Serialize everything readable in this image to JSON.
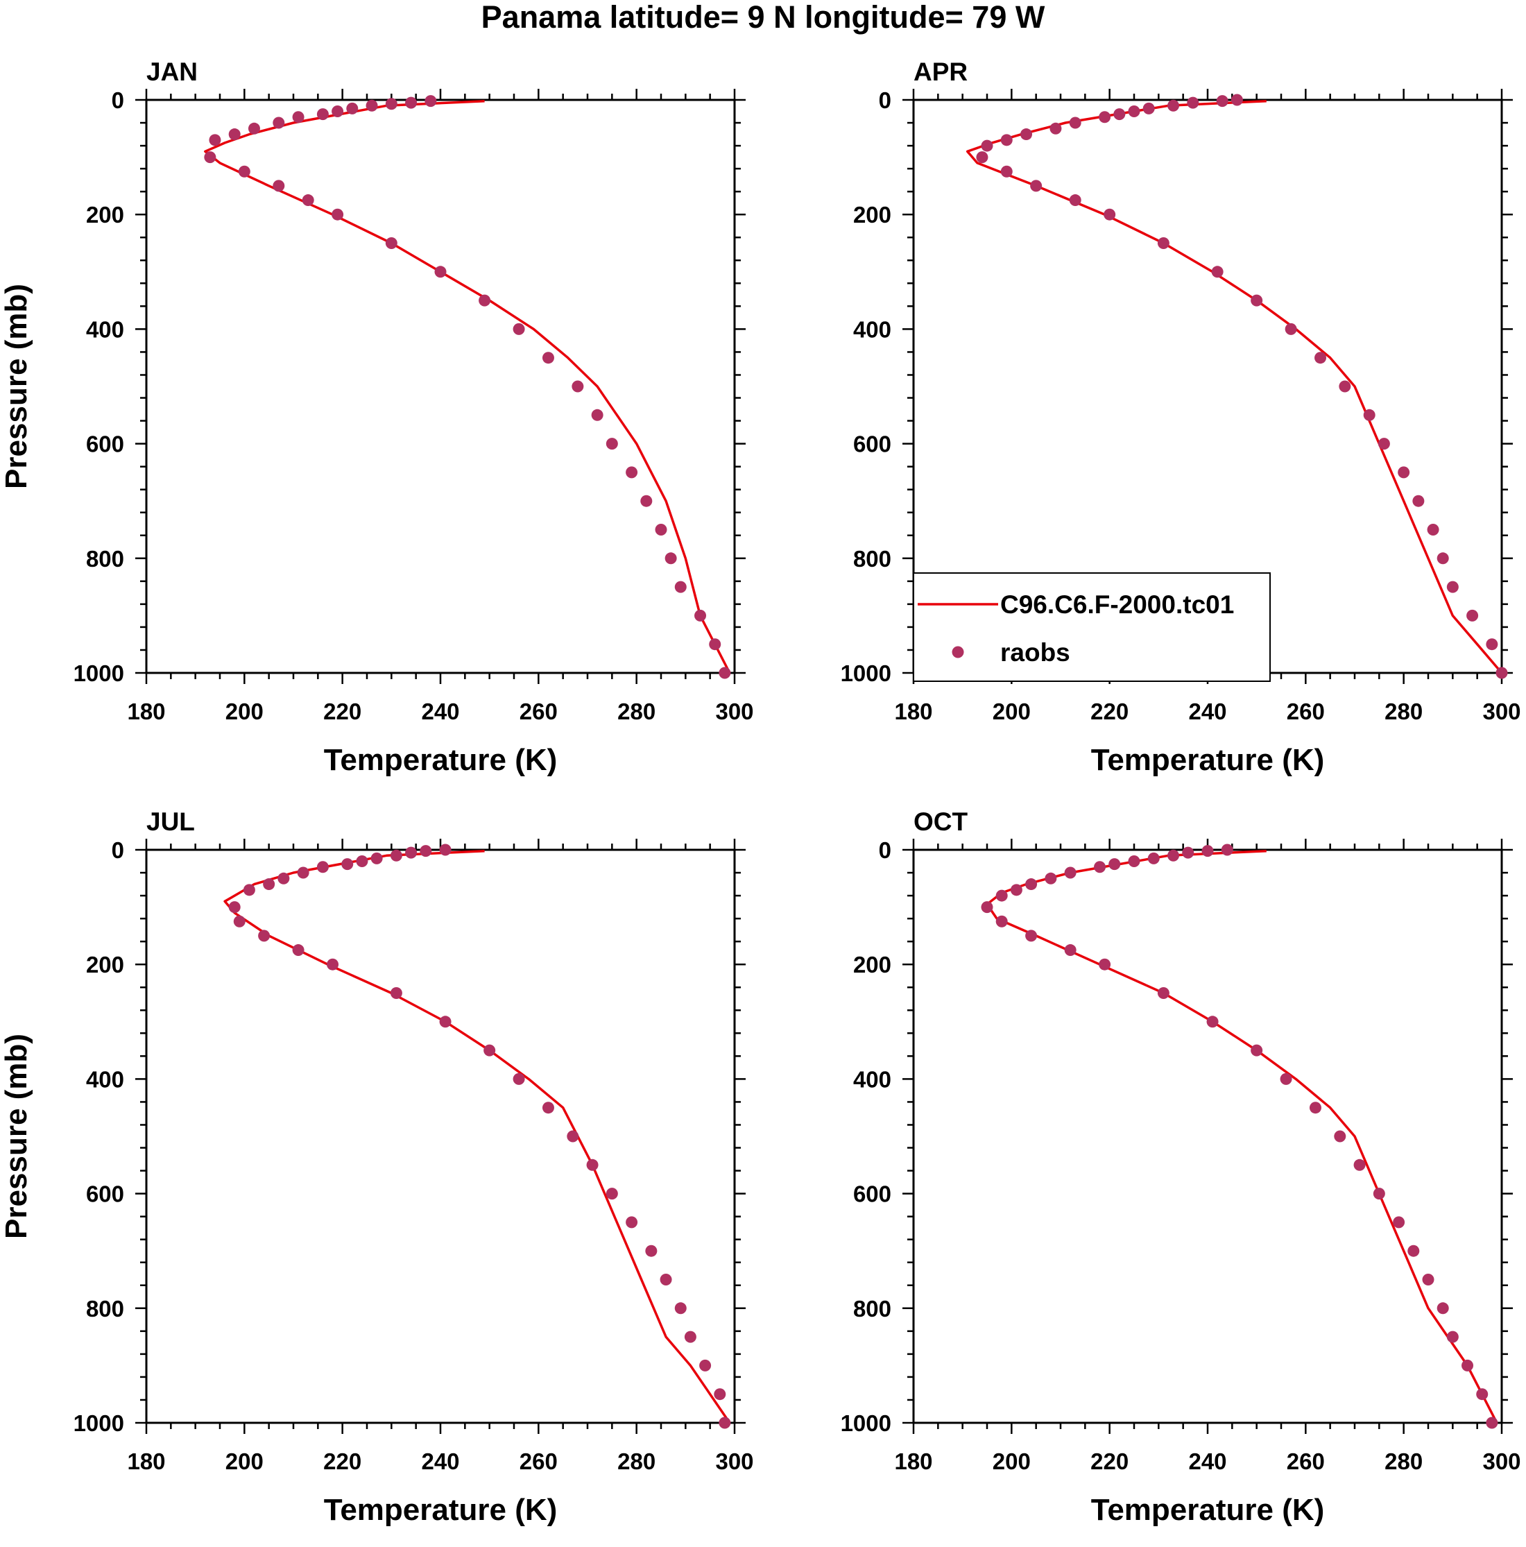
{
  "title": "Panama  latitude= 9 N longitude= 79 W",
  "colors": {
    "model": "#e8000b",
    "obs": "#b03060",
    "axis": "#000000"
  },
  "legend": {
    "model_label": "C96.C6.F-2000.tc01",
    "obs_label": "raobs",
    "placement": "inside APR panel, lower-left"
  },
  "chart_data": [
    {
      "type": "line",
      "title": "JAN",
      "xlabel": "Temperature (K)",
      "ylabel": "Pressure (mb)",
      "xlim": [
        180,
        300
      ],
      "ylim": [
        1000,
        0
      ],
      "xticks": [
        "180",
        "200",
        "220",
        "240",
        "260",
        "280",
        "300"
      ],
      "yticks": [
        "0",
        "200",
        "400",
        "600",
        "800",
        "1000"
      ],
      "series": [
        {
          "name": "C96.C6.F-2000.tc01",
          "kind": "line",
          "x": [
            249,
            229,
            210,
            201,
            196,
            192,
            195,
            205,
            218,
            230,
            240,
            250,
            259,
            266,
            272,
            276,
            280,
            283,
            286,
            288,
            290,
            293,
            296,
            299
          ],
          "y": [
            2,
            10,
            40,
            60,
            75,
            90,
            110,
            150,
            200,
            250,
            300,
            350,
            400,
            450,
            500,
            550,
            600,
            650,
            700,
            750,
            800,
            900,
            950,
            1000
          ]
        },
        {
          "name": "raobs",
          "kind": "scatter",
          "x": [
            238,
            234,
            230,
            226,
            222,
            219,
            216,
            211,
            207,
            202,
            198,
            194,
            193,
            200,
            207,
            213,
            219,
            230,
            240,
            249,
            256,
            262,
            268,
            272,
            275,
            279,
            282,
            285,
            287,
            289,
            293,
            296,
            298
          ],
          "y": [
            2,
            5,
            7,
            10,
            15,
            20,
            25,
            30,
            40,
            50,
            60,
            70,
            100,
            125,
            150,
            175,
            200,
            250,
            300,
            350,
            400,
            450,
            500,
            550,
            600,
            650,
            700,
            750,
            800,
            850,
            900,
            950,
            1000
          ]
        }
      ]
    },
    {
      "type": "line",
      "title": "APR",
      "xlabel": "Temperature (K)",
      "ylabel": "",
      "xlim": [
        180,
        300
      ],
      "ylim": [
        1000,
        0
      ],
      "xticks": [
        "180",
        "200",
        "220",
        "240",
        "260",
        "280",
        "300"
      ],
      "yticks": [
        "0",
        "200",
        "400",
        "600",
        "800",
        "1000"
      ],
      "series": [
        {
          "name": "C96.C6.F-2000.tc01",
          "kind": "line",
          "x": [
            252,
            232,
            211,
            202,
            196,
            191,
            193,
            205,
            219,
            231,
            241,
            250,
            258,
            265,
            270,
            275,
            280,
            285,
            290,
            295,
            300
          ],
          "y": [
            2,
            10,
            40,
            60,
            75,
            90,
            110,
            150,
            200,
            250,
            300,
            350,
            400,
            450,
            500,
            600,
            700,
            800,
            900,
            950,
            1000
          ]
        },
        {
          "name": "raobs",
          "kind": "scatter",
          "x": [
            246,
            243,
            237,
            233,
            228,
            225,
            222,
            219,
            213,
            209,
            203,
            199,
            195,
            194,
            199,
            205,
            213,
            220,
            231,
            242,
            250,
            257,
            263,
            268,
            273,
            276,
            280,
            283,
            286,
            288,
            290,
            294,
            298,
            300
          ],
          "y": [
            0,
            2,
            5,
            10,
            15,
            20,
            25,
            30,
            40,
            50,
            60,
            70,
            80,
            100,
            125,
            150,
            175,
            200,
            250,
            300,
            350,
            400,
            450,
            500,
            550,
            600,
            650,
            700,
            750,
            800,
            850,
            900,
            950,
            1000
          ]
        }
      ]
    },
    {
      "type": "line",
      "title": "JUL",
      "xlabel": "Temperature (K)",
      "ylabel": "Pressure (mb)",
      "xlim": [
        180,
        300
      ],
      "ylim": [
        1000,
        0
      ],
      "xticks": [
        "180",
        "200",
        "220",
        "240",
        "260",
        "280",
        "300"
      ],
      "yticks": [
        "0",
        "200",
        "400",
        "600",
        "800",
        "1000"
      ],
      "series": [
        {
          "name": "C96.C6.F-2000.tc01",
          "kind": "line",
          "x": [
            249,
            229,
            210,
            202,
            199,
            196,
            198,
            205,
            217,
            230,
            241,
            250,
            258,
            265,
            271,
            276,
            281,
            286,
            291,
            295,
            299
          ],
          "y": [
            2,
            10,
            40,
            60,
            75,
            90,
            110,
            150,
            200,
            250,
            300,
            350,
            400,
            450,
            550,
            650,
            750,
            850,
            900,
            950,
            1000
          ]
        },
        {
          "name": "raobs",
          "kind": "scatter",
          "x": [
            241,
            237,
            234,
            231,
            227,
            224,
            221,
            216,
            212,
            208,
            205,
            201,
            198,
            199,
            204,
            211,
            218,
            231,
            241,
            250,
            256,
            262,
            267,
            271,
            275,
            279,
            283,
            286,
            289,
            291,
            294,
            297,
            298
          ],
          "y": [
            0,
            2,
            5,
            10,
            15,
            20,
            25,
            30,
            40,
            50,
            60,
            70,
            100,
            125,
            150,
            175,
            200,
            250,
            300,
            350,
            400,
            450,
            500,
            550,
            600,
            650,
            700,
            750,
            800,
            850,
            900,
            950,
            1000
          ]
        }
      ]
    },
    {
      "type": "line",
      "title": "OCT",
      "xlabel": "Temperature (K)",
      "ylabel": "",
      "xlim": [
        180,
        300
      ],
      "ylim": [
        1000,
        0
      ],
      "xticks": [
        "180",
        "200",
        "220",
        "240",
        "260",
        "280",
        "300"
      ],
      "yticks": [
        "0",
        "200",
        "400",
        "600",
        "800",
        "1000"
      ],
      "series": [
        {
          "name": "C96.C6.F-2000.tc01",
          "kind": "line",
          "x": [
            252,
            232,
            212,
            203,
            198,
            195,
            197,
            205,
            218,
            231,
            241,
            250,
            258,
            265,
            270,
            275,
            280,
            285,
            289,
            293,
            299
          ],
          "y": [
            2,
            10,
            40,
            60,
            75,
            95,
            120,
            150,
            200,
            250,
            300,
            350,
            400,
            450,
            500,
            600,
            700,
            800,
            850,
            900,
            1000
          ]
        },
        {
          "name": "raobs",
          "kind": "scatter",
          "x": [
            244,
            240,
            236,
            233,
            229,
            225,
            221,
            218,
            212,
            208,
            204,
            201,
            198,
            195,
            198,
            204,
            212,
            219,
            231,
            241,
            250,
            256,
            262,
            267,
            271,
            275,
            279,
            282,
            285,
            288,
            290,
            293,
            296,
            298
          ],
          "y": [
            0,
            2,
            5,
            10,
            15,
            20,
            25,
            30,
            40,
            50,
            60,
            70,
            80,
            100,
            125,
            150,
            175,
            200,
            250,
            300,
            350,
            400,
            450,
            500,
            550,
            600,
            650,
            700,
            750,
            800,
            850,
            900,
            950,
            1000
          ]
        }
      ]
    }
  ]
}
